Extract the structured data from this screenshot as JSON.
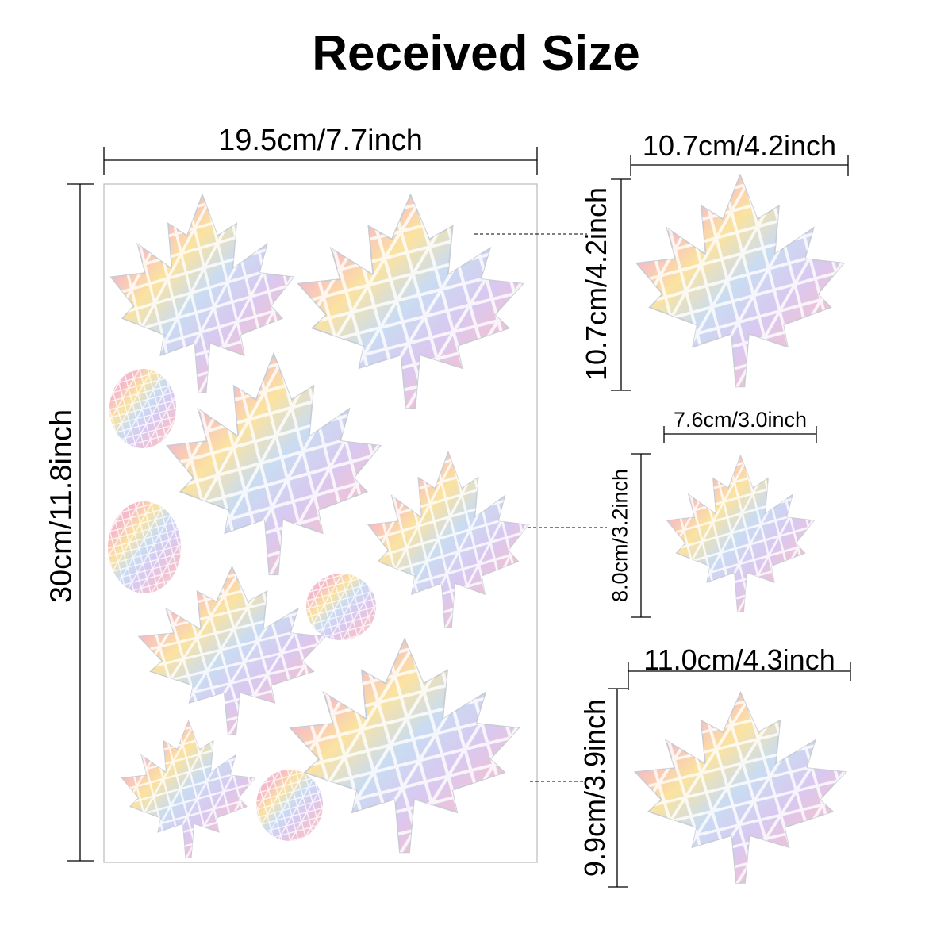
{
  "title": "Received Size",
  "sheet": {
    "width_label": "19.5cm/7.7inch",
    "height_label": "30cm/11.8inch"
  },
  "stickers": [
    {
      "width_label": "10.7cm/4.2inch",
      "height_label": "10.7cm/4.2inch"
    },
    {
      "width_label": "7.6cm/3.0inch",
      "height_label": "8.0cm/3.2inch"
    },
    {
      "width_label": "11.0cm/4.3inch",
      "height_label": "9.9cm/3.9inch"
    }
  ],
  "colors": {
    "line": "#000000",
    "sheet_border": "#bbbbbb",
    "iridescent": [
      "#f6b8c8",
      "#fbe3a0",
      "#b9d6f2",
      "#d9c8f0",
      "#e6e8ec"
    ]
  }
}
